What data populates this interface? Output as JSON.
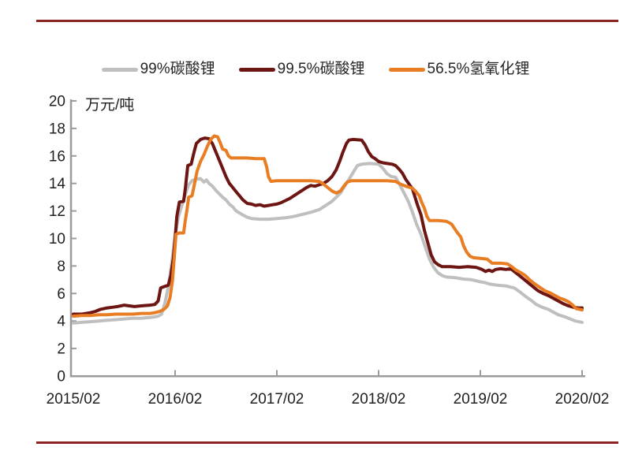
{
  "page": {
    "accent_rule_color": "#8a2423",
    "background": "#ffffff"
  },
  "chart_data": {
    "type": "line",
    "title": "",
    "unit_label": "万元/吨",
    "ylim": [
      0,
      20
    ],
    "y_ticks": [
      0,
      2,
      4,
      6,
      8,
      10,
      12,
      14,
      16,
      18,
      20
    ],
    "x_ticks": [
      {
        "label": "2015/02",
        "month": 0
      },
      {
        "label": "2016/02",
        "month": 12
      },
      {
        "label": "2017/02",
        "month": 24
      },
      {
        "label": "2018/02",
        "month": 36
      },
      {
        "label": "2019/02",
        "month": 48
      },
      {
        "label": "2020/02",
        "month": 60
      }
    ],
    "grid": "off",
    "legend_position": "top-center",
    "axis_color": "#9b9b9b",
    "series": [
      {
        "name": "99%碳酸锂",
        "color": "#bfbfbf",
        "points": [
          [
            0,
            3.85
          ],
          [
            1,
            3.9
          ],
          [
            2,
            3.95
          ],
          [
            3,
            4.0
          ],
          [
            4,
            4.05
          ],
          [
            5,
            4.1
          ],
          [
            6,
            4.15
          ],
          [
            7,
            4.2
          ],
          [
            8,
            4.2
          ],
          [
            9,
            4.25
          ],
          [
            9.6,
            4.3
          ],
          [
            10,
            4.35
          ],
          [
            10.4,
            4.5
          ],
          [
            10.8,
            5.3
          ],
          [
            11.2,
            6.5
          ],
          [
            11.6,
            8.2
          ],
          [
            12,
            10.2
          ],
          [
            12.4,
            11.6
          ],
          [
            12.8,
            12.4
          ],
          [
            13.2,
            13.2
          ],
          [
            13.6,
            13.9
          ],
          [
            14,
            14.2
          ],
          [
            14.4,
            14.3
          ],
          [
            15,
            14.35
          ],
          [
            15.4,
            14.1
          ],
          [
            15.7,
            14.25
          ],
          [
            16,
            14.0
          ],
          [
            16.4,
            13.8
          ],
          [
            16.8,
            13.5
          ],
          [
            17.2,
            13.25
          ],
          [
            17.6,
            13.0
          ],
          [
            18,
            12.8
          ],
          [
            18.4,
            12.5
          ],
          [
            18.8,
            12.3
          ],
          [
            19.2,
            12.0
          ],
          [
            19.6,
            11.85
          ],
          [
            20,
            11.7
          ],
          [
            20.5,
            11.55
          ],
          [
            21,
            11.45
          ],
          [
            22,
            11.4
          ],
          [
            23,
            11.4
          ],
          [
            24,
            11.45
          ],
          [
            25,
            11.5
          ],
          [
            26,
            11.6
          ],
          [
            27,
            11.75
          ],
          [
            28,
            11.9
          ],
          [
            29,
            12.1
          ],
          [
            30,
            12.5
          ],
          [
            30.5,
            12.7
          ],
          [
            31,
            13.0
          ],
          [
            31.5,
            13.3
          ],
          [
            32,
            13.8
          ],
          [
            32.5,
            14.3
          ],
          [
            33,
            14.8
          ],
          [
            33.5,
            15.3
          ],
          [
            34,
            15.4
          ],
          [
            35,
            15.45
          ],
          [
            36,
            15.4
          ],
          [
            36.5,
            15.1
          ],
          [
            37,
            14.7
          ],
          [
            37.5,
            14.5
          ],
          [
            38,
            14.45
          ],
          [
            38.5,
            13.9
          ],
          [
            39,
            13.3
          ],
          [
            39.5,
            12.7
          ],
          [
            40,
            11.9
          ],
          [
            40.5,
            11.0
          ],
          [
            41,
            10.3
          ],
          [
            41.5,
            9.4
          ],
          [
            42,
            8.5
          ],
          [
            42.5,
            7.9
          ],
          [
            43,
            7.5
          ],
          [
            43.5,
            7.3
          ],
          [
            44,
            7.2
          ],
          [
            45,
            7.15
          ],
          [
            46,
            7.05
          ],
          [
            47,
            7.0
          ],
          [
            48,
            6.85
          ],
          [
            48.5,
            6.8
          ],
          [
            49,
            6.7
          ],
          [
            50,
            6.6
          ],
          [
            51,
            6.55
          ],
          [
            52,
            6.4
          ],
          [
            52.7,
            6.1
          ],
          [
            53.3,
            5.8
          ],
          [
            54,
            5.5
          ],
          [
            54.6,
            5.2
          ],
          [
            55.3,
            5.0
          ],
          [
            56,
            4.85
          ],
          [
            56.6,
            4.65
          ],
          [
            57.2,
            4.45
          ],
          [
            58,
            4.3
          ],
          [
            58.6,
            4.15
          ],
          [
            59.2,
            4.0
          ],
          [
            60,
            3.9
          ]
        ]
      },
      {
        "name": "99.5%碳酸锂",
        "color": "#6d1512",
        "points": [
          [
            0,
            4.5
          ],
          [
            1,
            4.5
          ],
          [
            2,
            4.6
          ],
          [
            2.6,
            4.7
          ],
          [
            3.2,
            4.85
          ],
          [
            4,
            4.95
          ],
          [
            4.6,
            5.0
          ],
          [
            5.2,
            5.05
          ],
          [
            6,
            5.15
          ],
          [
            6.6,
            5.1
          ],
          [
            7.2,
            5.05
          ],
          [
            8,
            5.1
          ],
          [
            9,
            5.15
          ],
          [
            9.6,
            5.2
          ],
          [
            10,
            5.45
          ],
          [
            10.3,
            6.4
          ],
          [
            10.7,
            6.5
          ],
          [
            11.2,
            6.6
          ],
          [
            11.5,
            7.3
          ],
          [
            11.8,
            8.6
          ],
          [
            12,
            10.0
          ],
          [
            12.2,
            11.6
          ],
          [
            12.5,
            12.65
          ],
          [
            13,
            12.7
          ],
          [
            13.2,
            13.6
          ],
          [
            13.5,
            15.3
          ],
          [
            13.9,
            15.4
          ],
          [
            14.2,
            16.2
          ],
          [
            14.5,
            16.9
          ],
          [
            15,
            17.2
          ],
          [
            15.5,
            17.3
          ],
          [
            16,
            17.25
          ],
          [
            16.4,
            16.9
          ],
          [
            16.8,
            16.3
          ],
          [
            17.2,
            15.7
          ],
          [
            17.6,
            15.1
          ],
          [
            18,
            14.5
          ],
          [
            18.4,
            14.0
          ],
          [
            18.8,
            13.7
          ],
          [
            19.2,
            13.4
          ],
          [
            19.6,
            13.1
          ],
          [
            20,
            12.8
          ],
          [
            20.5,
            12.55
          ],
          [
            21,
            12.5
          ],
          [
            21.5,
            12.4
          ],
          [
            22,
            12.45
          ],
          [
            22.5,
            12.35
          ],
          [
            23,
            12.4
          ],
          [
            23.5,
            12.45
          ],
          [
            24,
            12.5
          ],
          [
            24.5,
            12.6
          ],
          [
            25,
            12.75
          ],
          [
            25.5,
            12.9
          ],
          [
            26,
            13.1
          ],
          [
            26.5,
            13.3
          ],
          [
            27,
            13.5
          ],
          [
            27.5,
            13.7
          ],
          [
            28,
            13.85
          ],
          [
            28.5,
            13.8
          ],
          [
            29,
            13.9
          ],
          [
            29.5,
            14.0
          ],
          [
            30,
            14.2
          ],
          [
            30.5,
            14.5
          ],
          [
            31,
            15.0
          ],
          [
            31.4,
            15.6
          ],
          [
            31.8,
            16.3
          ],
          [
            32.2,
            16.9
          ],
          [
            32.5,
            17.15
          ],
          [
            33,
            17.2
          ],
          [
            34,
            17.15
          ],
          [
            34.4,
            16.8
          ],
          [
            34.8,
            16.3
          ],
          [
            35.2,
            15.95
          ],
          [
            35.6,
            15.8
          ],
          [
            36,
            15.6
          ],
          [
            36.5,
            15.5
          ],
          [
            37,
            15.45
          ],
          [
            37.6,
            15.4
          ],
          [
            38,
            15.3
          ],
          [
            38.4,
            15.05
          ],
          [
            38.8,
            14.75
          ],
          [
            39.2,
            14.3
          ],
          [
            39.6,
            13.95
          ],
          [
            40,
            13.6
          ],
          [
            40.3,
            13.0
          ],
          [
            40.6,
            12.4
          ],
          [
            41,
            11.7
          ],
          [
            41.4,
            10.6
          ],
          [
            41.8,
            9.7
          ],
          [
            42.2,
            8.8
          ],
          [
            42.6,
            8.3
          ],
          [
            43,
            8.1
          ],
          [
            43.5,
            7.95
          ],
          [
            44.5,
            7.95
          ],
          [
            45.5,
            7.9
          ],
          [
            46.5,
            7.95
          ],
          [
            47.5,
            7.9
          ],
          [
            48.2,
            7.75
          ],
          [
            48.6,
            7.6
          ],
          [
            49,
            7.7
          ],
          [
            49.4,
            7.6
          ],
          [
            49.8,
            7.75
          ],
          [
            50.4,
            7.8
          ],
          [
            51,
            7.75
          ],
          [
            51.6,
            7.8
          ],
          [
            52,
            7.6
          ],
          [
            52.5,
            7.35
          ],
          [
            53,
            7.1
          ],
          [
            53.6,
            6.8
          ],
          [
            54.2,
            6.5
          ],
          [
            54.8,
            6.2
          ],
          [
            55.4,
            6.0
          ],
          [
            56,
            5.85
          ],
          [
            56.6,
            5.65
          ],
          [
            57.2,
            5.45
          ],
          [
            57.8,
            5.25
          ],
          [
            58.4,
            5.1
          ],
          [
            59,
            5.0
          ],
          [
            59.5,
            4.95
          ],
          [
            60,
            4.95
          ]
        ]
      },
      {
        "name": "56.5%氢氧化锂",
        "color": "#e87d23",
        "points": [
          [
            0,
            4.35
          ],
          [
            1,
            4.4
          ],
          [
            2,
            4.4
          ],
          [
            3,
            4.45
          ],
          [
            4,
            4.45
          ],
          [
            5,
            4.5
          ],
          [
            6,
            4.5
          ],
          [
            7,
            4.5
          ],
          [
            8,
            4.55
          ],
          [
            9,
            4.55
          ],
          [
            9.6,
            4.6
          ],
          [
            10.2,
            4.7
          ],
          [
            10.7,
            4.85
          ],
          [
            11.1,
            5.1
          ],
          [
            11.4,
            5.7
          ],
          [
            11.7,
            7.0
          ],
          [
            11.9,
            8.6
          ],
          [
            12.1,
            10.3
          ],
          [
            12.5,
            10.4
          ],
          [
            13,
            10.4
          ],
          [
            13.2,
            11.3
          ],
          [
            13.4,
            12.1
          ],
          [
            13.6,
            13.0
          ],
          [
            14,
            13.1
          ],
          [
            14.3,
            14.0
          ],
          [
            14.6,
            14.9
          ],
          [
            15,
            15.6
          ],
          [
            15.4,
            16.1
          ],
          [
            15.8,
            16.7
          ],
          [
            16.2,
            17.2
          ],
          [
            16.6,
            17.45
          ],
          [
            17,
            17.4
          ],
          [
            17.3,
            17.0
          ],
          [
            17.6,
            16.5
          ],
          [
            18,
            16.4
          ],
          [
            18.3,
            16.0
          ],
          [
            18.6,
            15.85
          ],
          [
            19.5,
            15.85
          ],
          [
            20.5,
            15.85
          ],
          [
            21.5,
            15.8
          ],
          [
            22.5,
            15.8
          ],
          [
            22.8,
            15.2
          ],
          [
            23,
            14.5
          ],
          [
            23.3,
            14.15
          ],
          [
            24,
            14.2
          ],
          [
            25,
            14.2
          ],
          [
            26,
            14.2
          ],
          [
            27,
            14.2
          ],
          [
            28,
            14.2
          ],
          [
            29,
            14.15
          ],
          [
            29.5,
            13.95
          ],
          [
            30,
            13.7
          ],
          [
            30.5,
            13.45
          ],
          [
            31,
            13.3
          ],
          [
            31.5,
            13.45
          ],
          [
            31.9,
            13.8
          ],
          [
            32.3,
            14.1
          ],
          [
            32.8,
            14.2
          ],
          [
            34,
            14.2
          ],
          [
            35,
            14.2
          ],
          [
            36,
            14.2
          ],
          [
            37,
            14.2
          ],
          [
            38,
            14.15
          ],
          [
            38.6,
            13.95
          ],
          [
            39.2,
            13.8
          ],
          [
            40,
            13.65
          ],
          [
            40.4,
            13.4
          ],
          [
            40.8,
            13.1
          ],
          [
            41.1,
            12.6
          ],
          [
            41.4,
            12.2
          ],
          [
            41.7,
            11.6
          ],
          [
            42,
            11.3
          ],
          [
            43,
            11.3
          ],
          [
            44,
            11.25
          ],
          [
            44.6,
            11.05
          ],
          [
            45.2,
            10.5
          ],
          [
            45.7,
            10.1
          ],
          [
            46,
            9.5
          ],
          [
            46.4,
            9.0
          ],
          [
            46.8,
            8.7
          ],
          [
            47.2,
            8.6
          ],
          [
            48,
            8.55
          ],
          [
            48.8,
            8.5
          ],
          [
            49.4,
            8.2
          ],
          [
            50.4,
            8.2
          ],
          [
            51.2,
            8.15
          ],
          [
            51.7,
            7.95
          ],
          [
            52.2,
            7.7
          ],
          [
            52.8,
            7.5
          ],
          [
            53.3,
            7.3
          ],
          [
            53.8,
            7.0
          ],
          [
            54.4,
            6.7
          ],
          [
            55,
            6.45
          ],
          [
            55.6,
            6.2
          ],
          [
            56.2,
            6.05
          ],
          [
            56.8,
            5.85
          ],
          [
            57.4,
            5.65
          ],
          [
            57.9,
            5.55
          ],
          [
            58.4,
            5.4
          ],
          [
            58.9,
            5.15
          ],
          [
            59.3,
            4.9
          ],
          [
            59.7,
            4.85
          ],
          [
            60,
            4.8
          ]
        ]
      }
    ]
  }
}
